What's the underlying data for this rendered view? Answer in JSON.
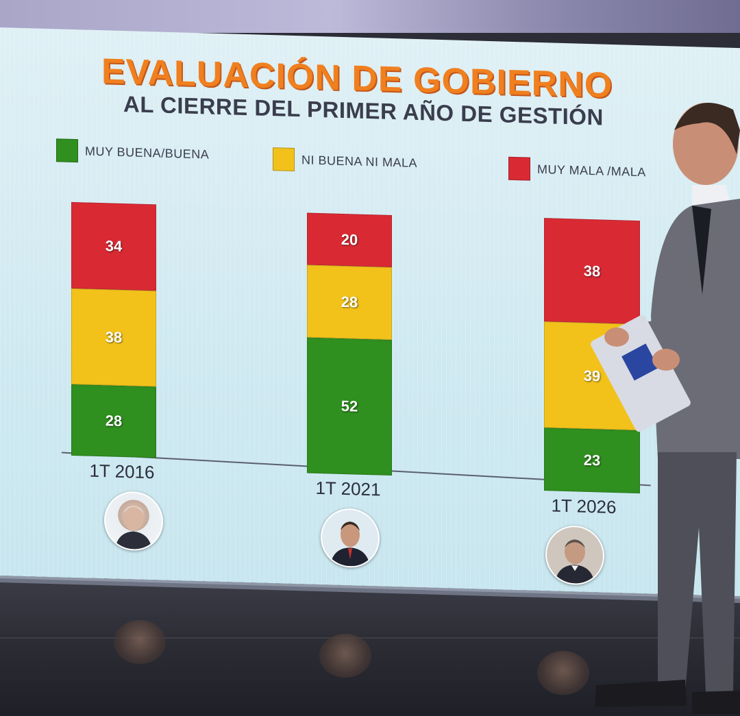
{
  "colors": {
    "good": "#2f8f1f",
    "neutral": "#f2c21b",
    "bad": "#d92a34",
    "title": "#f0801f"
  },
  "chart_data": {
    "type": "bar",
    "stacked": true,
    "title": "EVALUACIÓN DE GOBIERNO",
    "subtitle": "AL CIERRE DEL PRIMER AÑO DE GESTIÓN",
    "categories": [
      "1T 2016",
      "1T 2021",
      "1T 2026"
    ],
    "series": [
      {
        "name": "MUY BUENA/BUENA",
        "values": [
          28,
          52,
          23
        ],
        "color": "#2f8f1f"
      },
      {
        "name": "NI BUENA NI MALA",
        "values": [
          38,
          28,
          39
        ],
        "color": "#f2c21b"
      },
      {
        "name": "MUY MALA /MALA",
        "values": [
          34,
          20,
          38
        ],
        "color": "#d92a34"
      }
    ],
    "ylim": [
      0,
      100
    ],
    "legend": "top",
    "grid": false
  },
  "icons": {
    "avatar_2016": "portrait-icon",
    "avatar_2021": "portrait-icon",
    "avatar_2026": "portrait-icon"
  },
  "reflections": [
    "1T 2016",
    "1T 2021",
    "1T 2026"
  ]
}
